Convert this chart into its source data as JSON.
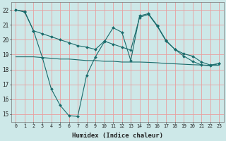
{
  "xlabel": "Humidex (Indice chaleur)",
  "bg_color": "#cde8e8",
  "grid_color": "#e8a0a0",
  "line_color": "#1a6b6b",
  "x": [
    0,
    1,
    2,
    3,
    4,
    5,
    6,
    7,
    8,
    9,
    10,
    11,
    12,
    13,
    14,
    15,
    16,
    17,
    18,
    19,
    20,
    21,
    22,
    23
  ],
  "line1_top": [
    22.0,
    21.9,
    20.6,
    20.4,
    20.2,
    20.0,
    19.8,
    19.6,
    19.5,
    19.35,
    19.9,
    19.7,
    19.5,
    19.3,
    21.5,
    21.7,
    20.9,
    19.9,
    19.35,
    19.05,
    18.9,
    18.5,
    18.3,
    18.4
  ],
  "line2_volatile": [
    22.0,
    21.85,
    20.6,
    18.8,
    16.7,
    15.6,
    14.9,
    14.85,
    17.6,
    18.85,
    19.85,
    20.8,
    20.5,
    18.6,
    21.6,
    21.75,
    20.95,
    19.95,
    19.35,
    18.9,
    18.55,
    18.3,
    18.25,
    18.4
  ],
  "line3_flat": [
    18.85,
    18.85,
    18.85,
    18.8,
    18.75,
    18.7,
    18.7,
    18.65,
    18.6,
    18.6,
    18.55,
    18.55,
    18.5,
    18.5,
    18.5,
    18.48,
    18.45,
    18.4,
    18.38,
    18.35,
    18.32,
    18.3,
    18.28,
    18.28
  ],
  "ylim": [
    14.5,
    22.5
  ],
  "yticks": [
    15,
    16,
    17,
    18,
    19,
    20,
    21,
    22
  ],
  "xtick_labels": [
    "0",
    "1",
    "2",
    "3",
    "4",
    "5",
    "6",
    "7",
    "8",
    "9",
    "10",
    "11",
    "12",
    "13",
    "14",
    "15",
    "16",
    "17",
    "18",
    "19",
    "20",
    "21",
    "22",
    "23"
  ],
  "figw": 3.2,
  "figh": 2.0,
  "dpi": 100
}
